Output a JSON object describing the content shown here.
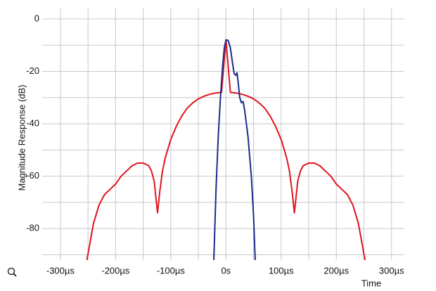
{
  "chart_data": {
    "type": "line",
    "x_label": "Time",
    "y_label": "Magnitude Response (dB)",
    "xlim": [
      -333,
      322
    ],
    "ylim": [
      -92,
      4
    ],
    "grid": true,
    "xticks": [
      {
        "value": -300,
        "label": "-300µs"
      },
      {
        "value": -200,
        "label": "-200µs"
      },
      {
        "value": -100,
        "label": "-100µs"
      },
      {
        "value": 0,
        "label": "0s"
      },
      {
        "value": 100,
        "label": "100µs"
      },
      {
        "value": 200,
        "label": "200µs"
      },
      {
        "value": 300,
        "label": "300µs"
      }
    ],
    "xminor": [
      -250,
      -150,
      -50,
      50,
      150,
      250
    ],
    "yticks": [
      0,
      -20,
      -40,
      -60,
      -80
    ],
    "yminor": [
      -10,
      -30,
      -50,
      -70,
      -90
    ],
    "series": [
      {
        "color": "#e0141e",
        "x": [
          -252,
          -240,
          -230,
          -220,
          -210,
          -200,
          -190,
          -180,
          -170,
          -160,
          -150,
          -140,
          -135,
          -130,
          -126,
          -124,
          -120,
          -115,
          -110,
          -100,
          -90,
          -80,
          -70,
          -60,
          -50,
          -40,
          -30,
          -20,
          -8,
          0,
          8,
          20,
          30,
          40,
          50,
          60,
          70,
          80,
          90,
          100,
          110,
          115,
          120,
          124,
          126,
          130,
          135,
          140,
          150,
          160,
          170,
          180,
          190,
          200,
          210,
          220,
          230,
          240,
          252
        ],
        "values": [
          -92,
          -78,
          -71,
          -67,
          -65,
          -63,
          -60,
          -58,
          -56,
          -55,
          -55,
          -56,
          -58,
          -62,
          -70,
          -74,
          -66,
          -58,
          -53,
          -46,
          -41,
          -37,
          -34,
          -32,
          -30.5,
          -29.5,
          -28.8,
          -28.3,
          -28,
          -8,
          -28,
          -28.3,
          -28.8,
          -29.5,
          -30.5,
          -32,
          -34,
          -37,
          -41,
          -46,
          -53,
          -58,
          -66,
          -74,
          -70,
          -62,
          -58,
          -56,
          -55,
          -55,
          -56,
          -58,
          -60,
          -63,
          -65,
          -67,
          -71,
          -78,
          -92
        ]
      },
      {
        "color": "#1c2c8c",
        "x": [
          -22,
          -18,
          -14,
          -10,
          -6,
          -3,
          0,
          4,
          8,
          12,
          15,
          18,
          20,
          22,
          25,
          28,
          31,
          34,
          40,
          46,
          50,
          53
        ],
        "values": [
          -92,
          -65,
          -45,
          -30,
          -18,
          -11,
          -8,
          -8.2,
          -11,
          -17,
          -21,
          -21.5,
          -20.5,
          -24,
          -30,
          -32,
          -31.5,
          -35,
          -45,
          -60,
          -75,
          -92
        ]
      }
    ]
  }
}
